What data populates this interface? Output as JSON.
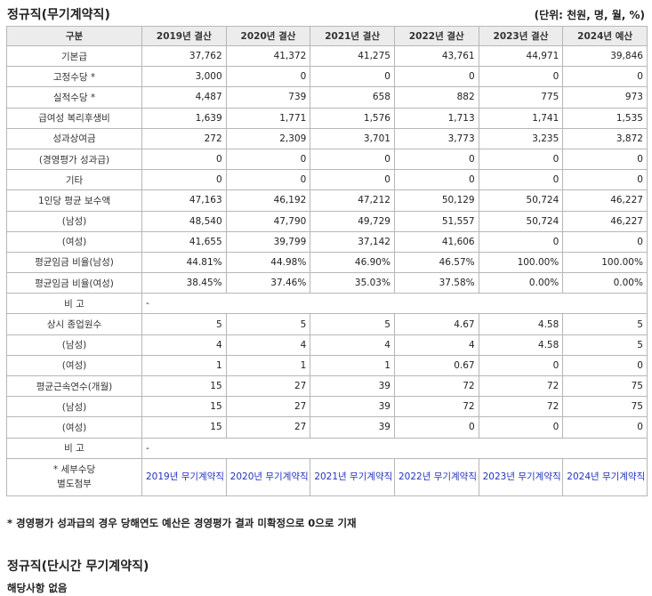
{
  "title": "정규직(무기계약직)",
  "unit": "(단위: 천원, 명, 월, %)",
  "header": {
    "label": "구분",
    "years": [
      "2019년 결산",
      "2020년 결산",
      "2021년 결산",
      "2022년 결산",
      "2023년 결산",
      "2024년 예산"
    ]
  },
  "rows": [
    {
      "label": "기본급",
      "values": [
        "37,762",
        "41,372",
        "41,275",
        "43,761",
        "44,971",
        "39,846"
      ]
    },
    {
      "label": "고정수당 *",
      "values": [
        "3,000",
        "0",
        "0",
        "0",
        "0",
        "0"
      ]
    },
    {
      "label": "실적수당 *",
      "values": [
        "4,487",
        "739",
        "658",
        "882",
        "775",
        "973"
      ]
    },
    {
      "label": "급여성 복리후생비",
      "values": [
        "1,639",
        "1,771",
        "1,576",
        "1,713",
        "1,741",
        "1,535"
      ]
    },
    {
      "label": "성과상여금",
      "values": [
        "272",
        "2,309",
        "3,701",
        "3,773",
        "3,235",
        "3,872"
      ]
    },
    {
      "label": "(경영평가 성과급)",
      "values": [
        "0",
        "0",
        "0",
        "0",
        "0",
        "0"
      ]
    },
    {
      "label": "기타",
      "values": [
        "0",
        "0",
        "0",
        "0",
        "0",
        "0"
      ]
    },
    {
      "label": "1인당 평균 보수액",
      "values": [
        "47,163",
        "46,192",
        "47,212",
        "50,129",
        "50,724",
        "46,227"
      ]
    },
    {
      "label": "(남성)",
      "values": [
        "48,540",
        "47,790",
        "49,729",
        "51,557",
        "50,724",
        "46,227"
      ]
    },
    {
      "label": "(여성)",
      "values": [
        "41,655",
        "39,799",
        "37,142",
        "41,606",
        "0",
        "0"
      ]
    },
    {
      "label": "평균임금 비율(남성)",
      "values": [
        "44.81%",
        "44.98%",
        "46.90%",
        "46.57%",
        "100.00%",
        "100.00%"
      ]
    },
    {
      "label": "평균임금 비율(여성)",
      "values": [
        "38.45%",
        "37.46%",
        "35.03%",
        "37.58%",
        "0.00%",
        "0.00%"
      ]
    }
  ],
  "note1": {
    "label": "비 고",
    "text": "-"
  },
  "rows2": [
    {
      "label": "상시 종업원수",
      "values": [
        "5",
        "5",
        "5",
        "4.67",
        "4.58",
        "5"
      ]
    },
    {
      "label": "(남성)",
      "values": [
        "4",
        "4",
        "4",
        "4",
        "4.58",
        "5"
      ]
    },
    {
      "label": "(여성)",
      "values": [
        "1",
        "1",
        "1",
        "0.67",
        "0",
        "0"
      ]
    },
    {
      "label": "평균근속연수(개월)",
      "values": [
        "15",
        "27",
        "39",
        "72",
        "72",
        "75"
      ]
    },
    {
      "label": "(남성)",
      "values": [
        "15",
        "27",
        "39",
        "72",
        "72",
        "75"
      ]
    },
    {
      "label": "(여성)",
      "values": [
        "15",
        "27",
        "39",
        "0",
        "0",
        "0"
      ]
    }
  ],
  "note2": {
    "label": "비 고",
    "text": "-"
  },
  "attachments": {
    "label_line1": "* 세부수당",
    "label_line2": "별도첨부",
    "files": [
      "2019년 무기계약직 세부수당.xlsx",
      "2020년 무기계약직 세부수당.xlsx",
      "2021년 무기계약직 세부수당.xlsx",
      "2022년 무기계약직 세부수당.xlsx",
      "2023년 무기계약직 세부수당.xlsx",
      "2024년 무기계약직 세부수당.xlsx"
    ]
  },
  "footnote": "* 경영평가 성과급의 경우 당해연도 예산은 경영평가 결과 미확정으로 0으로 기재",
  "section2": {
    "title": "정규직(단시간 무기계약직)",
    "content": "해당사항 없음"
  }
}
